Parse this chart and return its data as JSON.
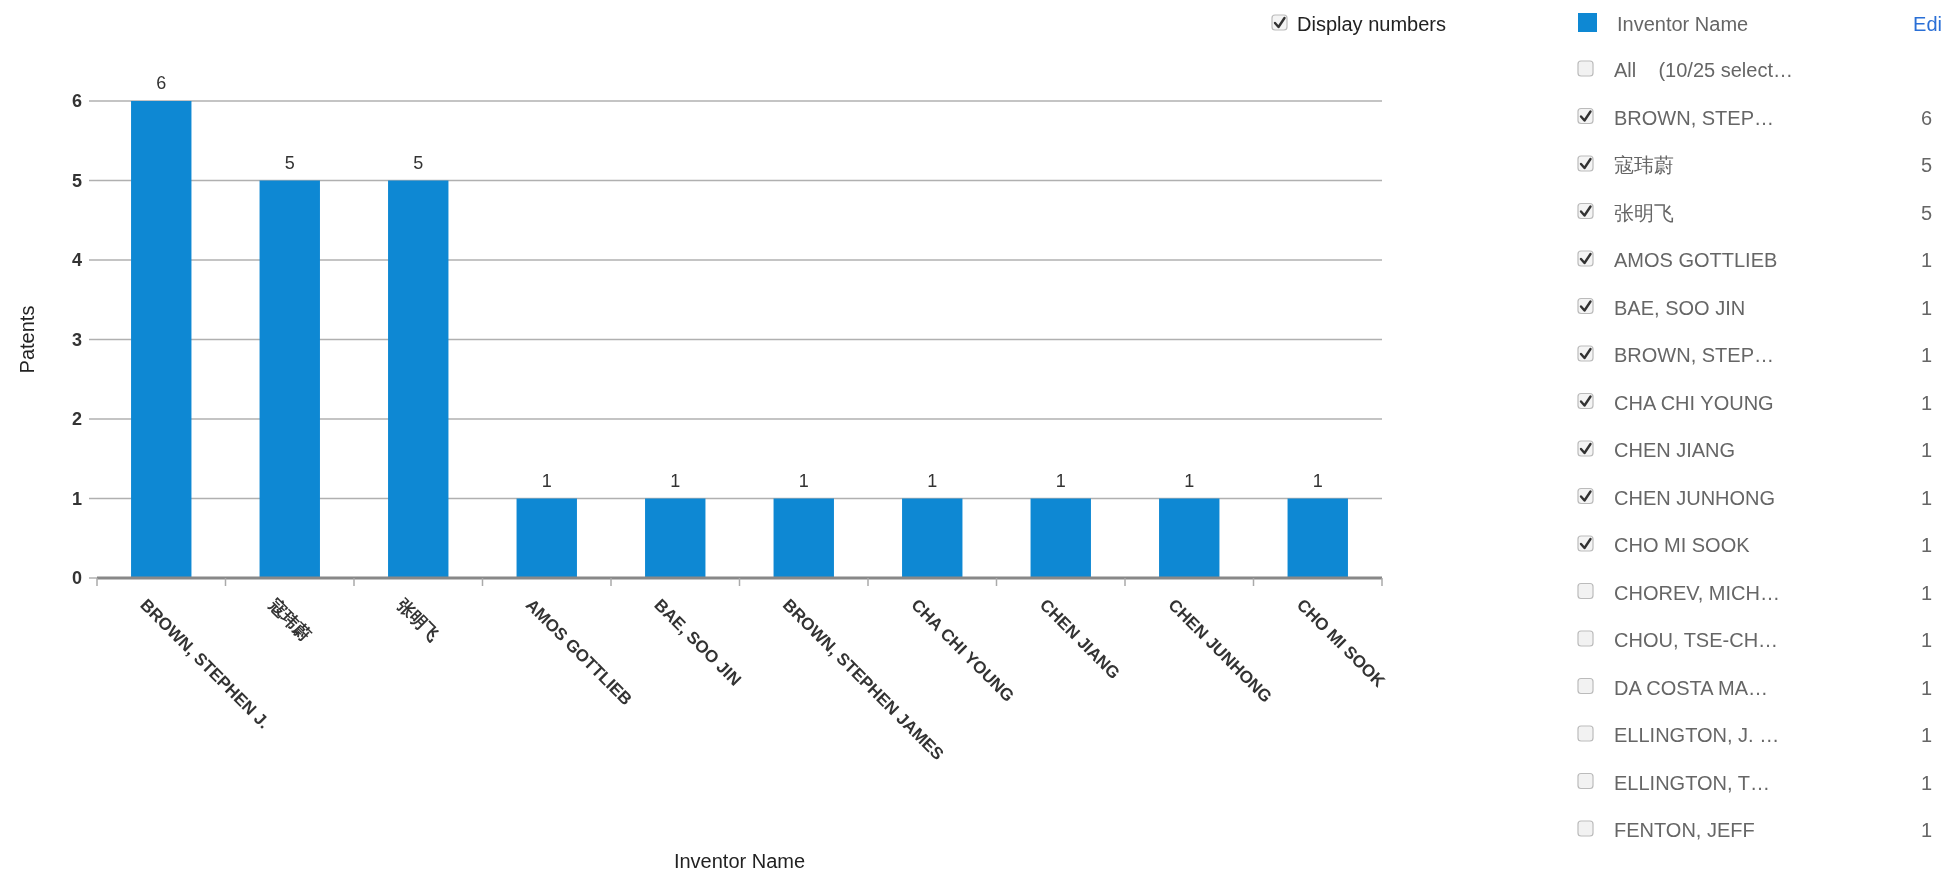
{
  "chart_data": [
    {
      "type": "bar",
      "xlabel": "Inventor Name",
      "ylabel": "Patents",
      "categories": [
        "BROWN, STEPHEN J.",
        "寇玮蔚",
        "张明飞",
        "AMOS GOTTLIEB",
        "BAE, SOO JIN",
        "BROWN, STEPHEN JAMES",
        "CHA CHI YOUNG",
        "CHEN JIANG",
        "CHEN JUNHONG",
        "CHO MI SOOK"
      ],
      "values": [
        6,
        5,
        5,
        1,
        1,
        1,
        1,
        1,
        1,
        1
      ],
      "color": "#0e88d3",
      "ylim": [
        0,
        6
      ],
      "yticks": [
        0,
        1,
        2,
        3,
        4,
        5,
        6
      ],
      "grid": "y",
      "data_labels": true,
      "annotations": [
        "Display numbers"
      ]
    },
    {
      "type": "other",
      "title": "Inventor Name",
      "color": "#0e88d3",
      "categories": [
        "All    (10/25 select…",
        "BROWN, STEP…",
        "寇玮蔚",
        "张明飞",
        "AMOS GOTTLIEB",
        "BAE, SOO JIN",
        "BROWN, STEP…",
        "CHA CHI YOUNG",
        "CHEN JIANG",
        "CHEN JUNHONG",
        "CHO MI SOOK",
        "CHOREV, MICH…",
        "CHOU, TSE-CH…",
        "DA COSTA MA…",
        "ELLINGTON, J. …",
        "ELLINGTON, T…",
        "FENTON, JEFF"
      ],
      "values": [
        null,
        6,
        5,
        5,
        1,
        1,
        1,
        1,
        1,
        1,
        1,
        1,
        1,
        1,
        1,
        1,
        1
      ],
      "colors": [
        "#f2f2f2",
        "#333333",
        "#333333",
        "#333333",
        "#333333",
        "#333333",
        "#333333",
        "#333333",
        "#333333",
        "#333333",
        "#333333",
        "#f2f2f2",
        "#f2f2f2",
        "#f2f2f2",
        "#f2f2f2",
        "#f2f2f2",
        "#f2f2f2"
      ],
      "data_labels": true,
      "annotations": [
        "Edi"
      ]
    }
  ]
}
